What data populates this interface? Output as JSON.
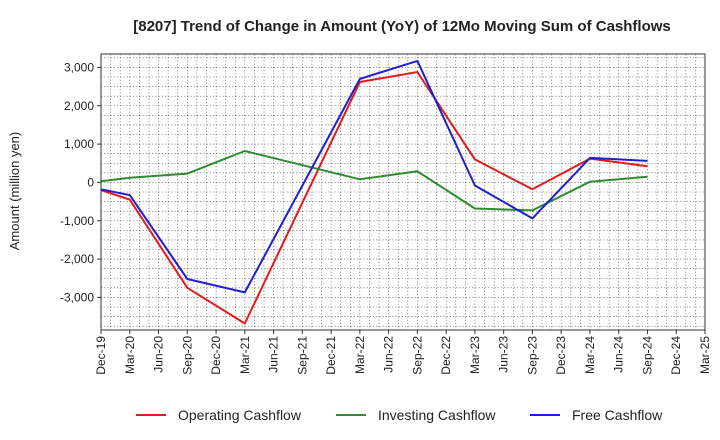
{
  "chart_data": {
    "type": "line",
    "title": "[8207]  Trend of Change in Amount (YoY) of 12Mo Moving Sum of Cashflows",
    "xlabel": "",
    "ylabel": "Amount (million yen)",
    "ylim": [
      -3850,
      3350
    ],
    "yticks": [
      3000,
      2000,
      1000,
      0,
      -1000,
      -2000,
      -3000
    ],
    "ytick_labels": [
      "3,000",
      "2,000",
      "1,000",
      "0",
      "-1,000",
      "-2,000",
      "-3,000"
    ],
    "categories": [
      "Dec-19",
      "Mar-20",
      "Jun-20",
      "Sep-20",
      "Dec-20",
      "Mar-21",
      "Jun-21",
      "Sep-21",
      "Dec-21",
      "Mar-22",
      "Jun-22",
      "Sep-22",
      "Dec-22",
      "Mar-23",
      "Jun-23",
      "Sep-23",
      "Dec-23",
      "Mar-24",
      "Jun-24",
      "Sep-24",
      "Dec-24",
      "Mar-25"
    ],
    "grid": true,
    "legend_position": "bottom",
    "series": [
      {
        "name": "Operating Cashflow",
        "color": "#e41a1c",
        "points": [
          {
            "x": "Dec-19",
            "y": -200
          },
          {
            "x": "Mar-20",
            "y": -450
          },
          {
            "x": "Sep-20",
            "y": -2750
          },
          {
            "x": "Mar-21",
            "y": -3680
          },
          {
            "x": "Mar-22",
            "y": 2620
          },
          {
            "x": "Sep-22",
            "y": 2880
          },
          {
            "x": "Mar-23",
            "y": 600
          },
          {
            "x": "Sep-23",
            "y": -180
          },
          {
            "x": "Mar-24",
            "y": 620
          },
          {
            "x": "Sep-24",
            "y": 420
          }
        ]
      },
      {
        "name": "Investing Cashflow",
        "color": "#2e8b2e",
        "points": [
          {
            "x": "Dec-19",
            "y": 30
          },
          {
            "x": "Mar-20",
            "y": 120
          },
          {
            "x": "Sep-20",
            "y": 230
          },
          {
            "x": "Mar-21",
            "y": 820
          },
          {
            "x": "Mar-22",
            "y": 80
          },
          {
            "x": "Sep-22",
            "y": 290
          },
          {
            "x": "Mar-23",
            "y": -680
          },
          {
            "x": "Sep-23",
            "y": -730
          },
          {
            "x": "Mar-24",
            "y": 20
          },
          {
            "x": "Sep-24",
            "y": 150
          }
        ]
      },
      {
        "name": "Free Cashflow",
        "color": "#1f1fd0",
        "points": [
          {
            "x": "Dec-19",
            "y": -180
          },
          {
            "x": "Mar-20",
            "y": -330
          },
          {
            "x": "Sep-20",
            "y": -2520
          },
          {
            "x": "Mar-21",
            "y": -2870
          },
          {
            "x": "Mar-22",
            "y": 2700
          },
          {
            "x": "Sep-22",
            "y": 3170
          },
          {
            "x": "Mar-23",
            "y": -80
          },
          {
            "x": "Sep-23",
            "y": -940
          },
          {
            "x": "Mar-24",
            "y": 640
          },
          {
            "x": "Sep-24",
            "y": 560
          }
        ]
      }
    ]
  }
}
